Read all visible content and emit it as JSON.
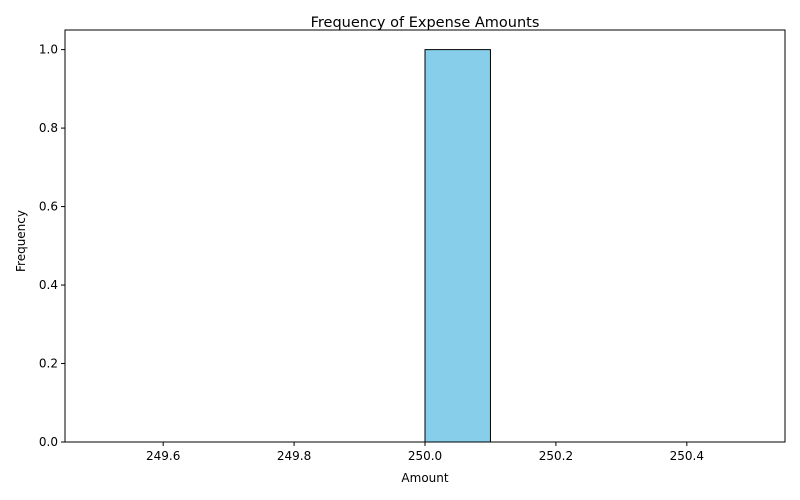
{
  "chart_data": {
    "type": "bar",
    "title": "Frequency of Expense Amounts",
    "xlabel": "Amount",
    "ylabel": "Frequency",
    "bin_edges": [
      249.5,
      249.6,
      249.7,
      249.8,
      249.9,
      250.0,
      250.1,
      250.2,
      250.3,
      250.4,
      250.5
    ],
    "values": [
      0,
      0,
      0,
      0,
      0,
      1,
      0,
      0,
      0,
      0
    ],
    "xlim": [
      249.45,
      250.55
    ],
    "ylim": [
      0,
      1.05
    ],
    "xticks": [
      249.6,
      249.8,
      250.0,
      250.2,
      250.4
    ],
    "xtick_labels": [
      "249.6",
      "249.8",
      "250.0",
      "250.2",
      "250.4"
    ],
    "yticks": [
      0,
      0.2,
      0.4,
      0.6,
      0.8,
      1.0
    ],
    "ytick_labels": [
      "0.0",
      "0.2",
      "0.4",
      "0.6",
      "0.8",
      "1.0"
    ],
    "grid": false,
    "legend": "none",
    "colors": {
      "bar_fill": "#87ceeb",
      "bar_edge": "#000000"
    }
  }
}
